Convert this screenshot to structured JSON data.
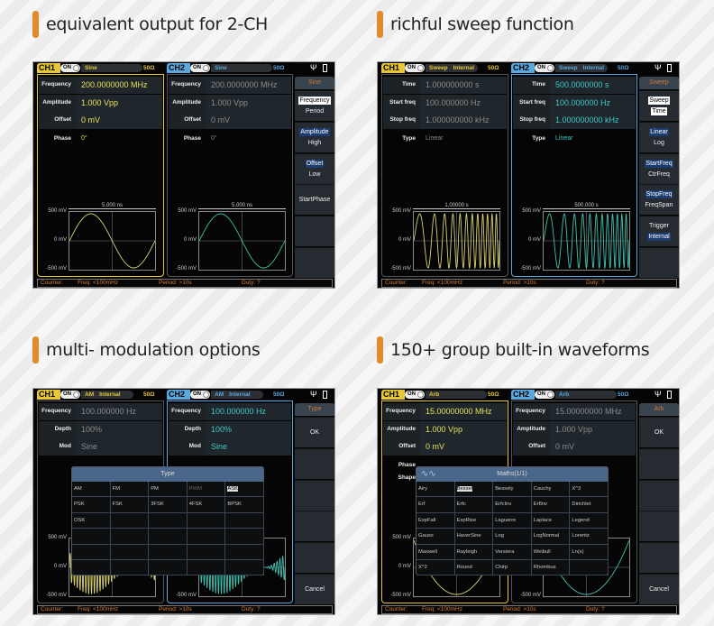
{
  "headings": [
    "equivalent output for 2-CH",
    "richful sweep function",
    "multi- modulation options",
    "150+ group built-in waveforms"
  ],
  "colors": {
    "accent_bar": "#e38a2a",
    "ch1": "#e8c830",
    "ch2": "#5aa8e0",
    "ch1_value": "#e6e05a",
    "ch2_value": "#3cc8c8",
    "inactive_value": "#8a8a8a",
    "counter_text": "#d8803a",
    "menu_title": "#c8783c"
  },
  "status_icons": [
    "usb-icon",
    "battery-icon"
  ],
  "screens": [
    {
      "active": "ch1",
      "ch1": {
        "tag": "CH1",
        "toggle": "ON",
        "mode": "Sine",
        "source": "",
        "impedance": "50Ω",
        "params": [
          {
            "label": "Frequency",
            "value": "200.0000000 MHz"
          },
          {
            "label": "Amplitude",
            "value": "1.000 Vpp"
          },
          {
            "label": "Offset",
            "value": "0 mV"
          }
        ],
        "extra": [
          {
            "label": "Phase",
            "value": "0°"
          }
        ],
        "plot": {
          "timebase": "5.000 ns",
          "y_top": "500 mV",
          "y_mid": "0 mV",
          "y_bot": "-500 mV",
          "wave": "sine"
        }
      },
      "ch2": {
        "tag": "CH2",
        "toggle": "ON",
        "mode": "Sine",
        "source": "",
        "impedance": "50Ω",
        "params": [
          {
            "label": "Frequency",
            "value": "200.0000000 MHz"
          },
          {
            "label": "Amplitude",
            "value": "1.000 Vpp"
          },
          {
            "label": "Offset",
            "value": "0 mV"
          }
        ],
        "extra": [
          {
            "label": "Phase",
            "value": "0°"
          }
        ],
        "plot": {
          "timebase": "5.000 ns",
          "y_top": "500 mV",
          "y_mid": "0 mV",
          "y_bot": "-500 mV",
          "wave": "sine"
        }
      },
      "menu": {
        "title": "Sine",
        "items": [
          [
            {
              "text": "Frequency",
              "style": "box"
            },
            {
              "text": "Period",
              "style": ""
            }
          ],
          [
            {
              "text": "Amplitude",
              "style": "blue"
            },
            {
              "text": "High",
              "style": ""
            }
          ],
          [
            {
              "text": "Offset",
              "style": "blue"
            },
            {
              "text": "Low",
              "style": ""
            }
          ],
          [
            {
              "text": "StartPhase",
              "style": ""
            }
          ],
          [],
          []
        ]
      },
      "counter": {
        "label": "Counter:",
        "freq": "Freq: <100mHz",
        "period": "Period: >10s",
        "duty": "Duty: ?"
      }
    },
    {
      "active": "ch2",
      "ch1": {
        "tag": "CH1",
        "toggle": "ON",
        "mode": "Sweep",
        "source": "Internal",
        "impedance": "50Ω",
        "params": [
          {
            "label": "Time",
            "value": "1.000000000 s"
          },
          {
            "label": "Start freq",
            "value": "100.000000 Hz"
          },
          {
            "label": "Stop freq",
            "value": "1.000000000 kHz"
          }
        ],
        "extra": [
          {
            "label": "Type",
            "value": "Linear"
          }
        ],
        "plot": {
          "timebase": "1.00000 s",
          "y_top": "500 mV",
          "y_mid": "0 mV",
          "y_bot": "-500 mV",
          "wave": "sweep"
        }
      },
      "ch2": {
        "tag": "CH2",
        "toggle": "ON",
        "mode": "Sweep",
        "source": "Internal",
        "impedance": "50Ω",
        "params": [
          {
            "label": "Time",
            "value": "500.0000000 s"
          },
          {
            "label": "Start freq",
            "value": "100.000000 Hz"
          },
          {
            "label": "Stop freq",
            "value": "1.000000000 kHz"
          }
        ],
        "extra": [
          {
            "label": "Type",
            "value": "Linear"
          }
        ],
        "plot": {
          "timebase": "500.000 s",
          "y_top": "500 mV",
          "y_mid": "0 mV",
          "y_bot": "-500 mV",
          "wave": "sweep"
        }
      },
      "menu": {
        "title": "Sweep",
        "items": [
          [
            {
              "text": "Sweep",
              "style": "box"
            },
            {
              "text": "Time",
              "style": "box"
            }
          ],
          [
            {
              "text": "Linear",
              "style": "blue"
            },
            {
              "text": "Log",
              "style": ""
            }
          ],
          [
            {
              "text": "StartFreq",
              "style": "blue"
            },
            {
              "text": "CtrFreq",
              "style": ""
            }
          ],
          [
            {
              "text": "StopFreq",
              "style": "blue"
            },
            {
              "text": "FreqSpan",
              "style": ""
            }
          ],
          [
            {
              "text": "Trigger",
              "style": ""
            },
            {
              "text": "Internal",
              "style": "blue"
            }
          ],
          []
        ]
      },
      "counter": {
        "label": "Counter:",
        "freq": "Freq: <100mHz",
        "period": "Period: >10s",
        "duty": "Duty: ?"
      }
    },
    {
      "active": "ch2",
      "ch1": {
        "tag": "CH1",
        "toggle": "ON",
        "mode": "AM",
        "source": "Internal",
        "impedance": "50Ω",
        "params": [
          {
            "label": "Frequency",
            "value": "100.000000 Hz"
          },
          {
            "label": "Depth",
            "value": "100%"
          },
          {
            "label": "Mod",
            "value": "Sine"
          }
        ],
        "extra": [],
        "plot": {
          "timebase": "",
          "y_top": "500 mV",
          "y_mid": "0 mV",
          "y_bot": "-500 mV",
          "wave": "am"
        }
      },
      "ch2": {
        "tag": "CH2",
        "toggle": "ON",
        "mode": "AM",
        "source": "Internal",
        "impedance": "50Ω",
        "params": [
          {
            "label": "Frequency",
            "value": "100.000000 Hz"
          },
          {
            "label": "Depth",
            "value": "100%"
          },
          {
            "label": "Mod",
            "value": "Sine"
          }
        ],
        "extra": [],
        "plot": {
          "timebase": "",
          "y_top": "",
          "y_mid": "",
          "y_bot": "-500 mV",
          "wave": "am"
        }
      },
      "menu": {
        "title": "Type",
        "items": [
          [
            {
              "text": "OK",
              "style": ""
            }
          ],
          [],
          [],
          [],
          [],
          [
            {
              "text": "Cancel",
              "style": ""
            }
          ]
        ]
      },
      "popup": {
        "title": "Type",
        "icon": "",
        "selected": "ASK",
        "disabled": [
          "PWM"
        ],
        "cells": [
          [
            "AM",
            "FM",
            "PM",
            "PWM",
            "ASK"
          ],
          [
            "PSK",
            "FSK",
            "3FSK",
            "4FSK",
            "BPSK"
          ],
          [
            "OSK",
            "",
            "",
            "",
            ""
          ],
          [
            "",
            "",
            "",
            "",
            ""
          ],
          [
            "",
            "",
            "",
            "",
            ""
          ],
          [
            "",
            "",
            "",
            "",
            ""
          ]
        ]
      },
      "counter": {
        "label": "Counter:",
        "freq": "Freq: <100mHz",
        "period": "Period: >10s",
        "duty": "Duty: ?"
      }
    },
    {
      "active": "ch1",
      "ch1": {
        "tag": "CH1",
        "toggle": "ON",
        "mode": "Arb",
        "source": "",
        "impedance": "50Ω",
        "params": [
          {
            "label": "Frequency",
            "value": "15.00000000 MHz"
          },
          {
            "label": "Amplitude",
            "value": "1.000 Vpp"
          },
          {
            "label": "Offset",
            "value": "0 mV"
          }
        ],
        "extra": [
          {
            "label": "Phase",
            "value": ""
          },
          {
            "label": "Shape",
            "value": ""
          }
        ],
        "plot": {
          "timebase": "",
          "y_top": "500 mV",
          "y_mid": "0 mV",
          "y_bot": "-500 mV",
          "wave": "square-law"
        }
      },
      "ch2": {
        "tag": "CH2",
        "toggle": "ON",
        "mode": "Arb",
        "source": "",
        "impedance": "50Ω",
        "params": [
          {
            "label": "Frequency",
            "value": "15.00000000 MHz"
          },
          {
            "label": "Amplitude",
            "value": "1.000 Vpp"
          },
          {
            "label": "Offset",
            "value": "0 mV"
          }
        ],
        "extra": [],
        "plot": {
          "timebase": "",
          "y_top": "",
          "y_mid": "",
          "y_bot": "-500 mV",
          "wave": "square-law"
        }
      },
      "menu": {
        "title": "Arb",
        "items": [
          [
            {
              "text": "OK",
              "style": ""
            }
          ],
          [],
          [],
          [],
          [],
          [
            {
              "text": "Cancel",
              "style": ""
            }
          ]
        ]
      },
      "popup": {
        "title": "Maths(1/1)",
        "icon": "wave-icon",
        "selected": "Bessel",
        "disabled": [],
        "cells": [
          [
            "Airy",
            "Bessel",
            "Bessely",
            "Cauchy",
            "X^3"
          ],
          [
            "Erf",
            "Erfc",
            "ErfcInv",
            "ErfInv",
            "Dirichlet"
          ],
          [
            "ExpFall",
            "ExpRise",
            "Laguerre",
            "Laplace",
            "Legend"
          ],
          [
            "Gauss",
            "HaverSine",
            "Log",
            "LogNormal",
            "Lorentz"
          ],
          [
            "Maxwell",
            "Rayleigh",
            "Versiera",
            "Weibull",
            "Ln(x)"
          ],
          [
            "X^2",
            "Round",
            "Chirp",
            "Rhombus",
            ""
          ]
        ]
      },
      "counter": {
        "label": "Counter:",
        "freq": "Freq: <100mHz",
        "period": "Period: >10s",
        "duty": "Duty: ?"
      }
    }
  ]
}
